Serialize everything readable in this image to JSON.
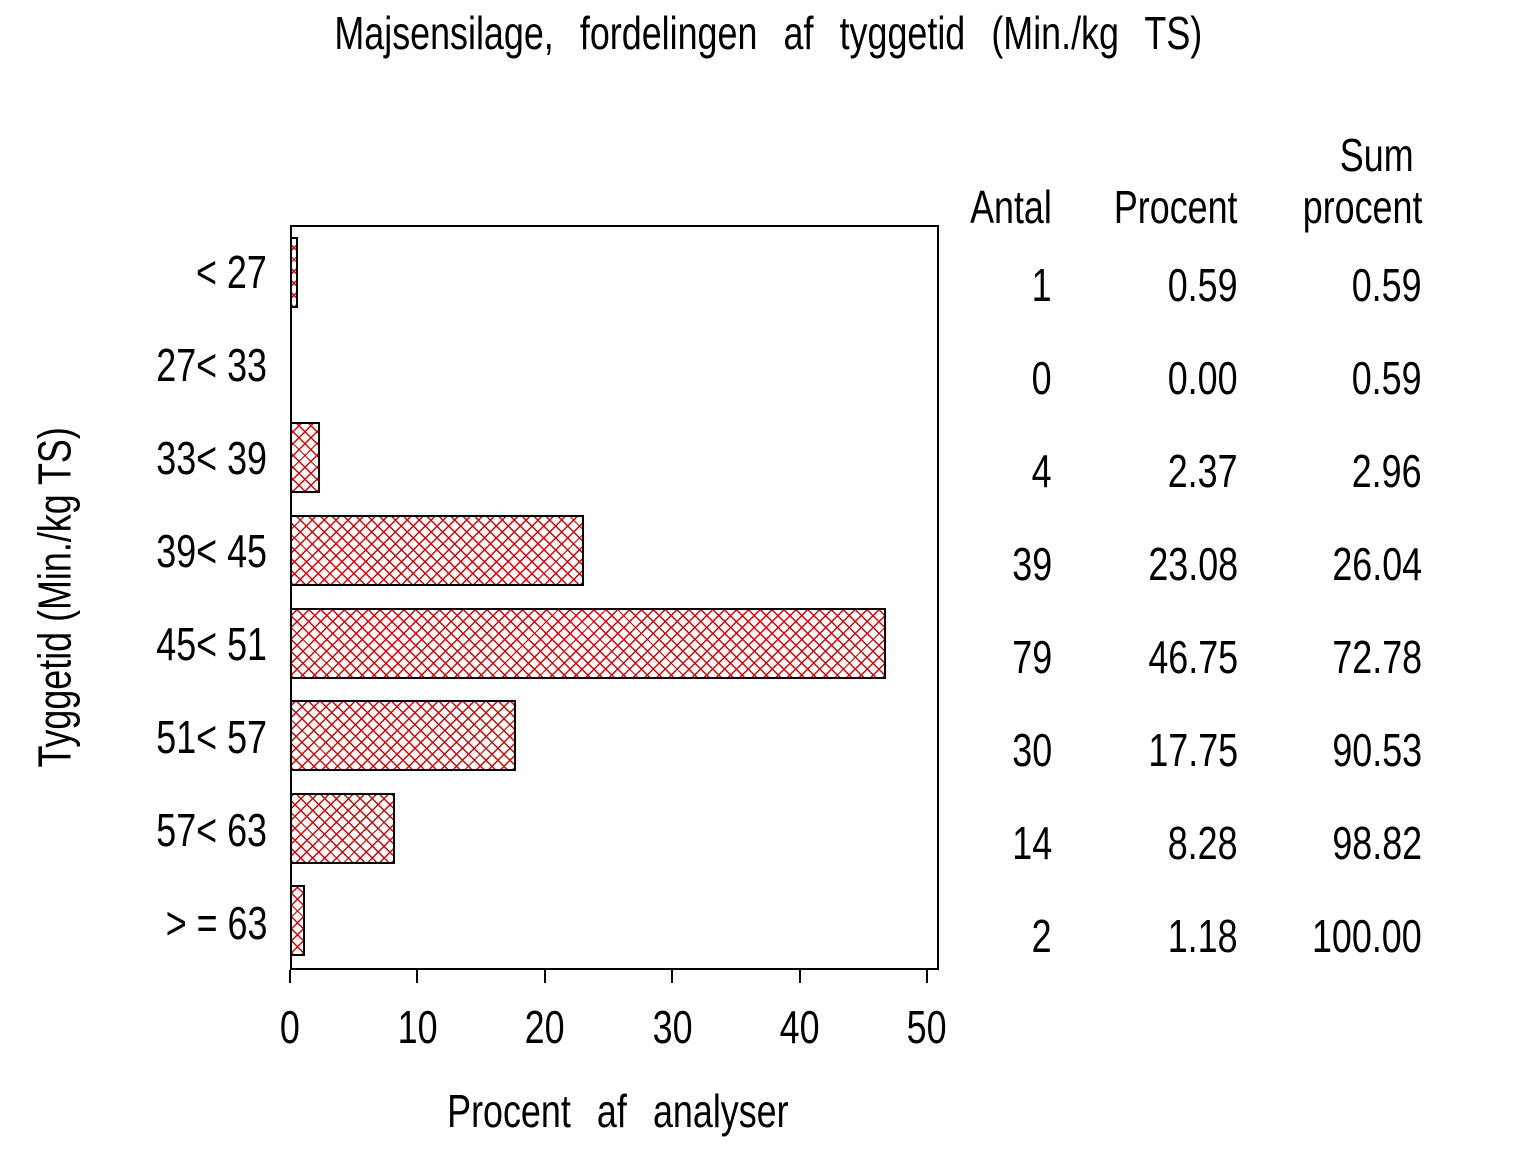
{
  "title": "Majsensilage, fordelingen af tyggetid (Min./kg TS)",
  "chart_data": {
    "type": "bar",
    "orientation": "horizontal",
    "title": "Majsensilage, fordelingen af tyggetid (Min./kg TS)",
    "xlabel": "Procent af analyser",
    "ylabel": "Tyggetid (Min./kg TS)",
    "xlim": [
      0,
      50
    ],
    "xticks": [
      "0",
      "10",
      "20",
      "30",
      "40",
      "50"
    ],
    "grid": "off",
    "legend": "none",
    "categories": [
      "< 27",
      "27< 33",
      "33< 39",
      "39< 45",
      "45< 51",
      "51< 57",
      "57< 63",
      "> = 63"
    ],
    "values": [
      0.59,
      0.0,
      2.37,
      23.08,
      46.75,
      17.75,
      8.28,
      1.18
    ],
    "bar_color": "#e00000",
    "bar_pattern": "crosshatch",
    "bar_border_color": "#000000"
  },
  "table": {
    "headers": {
      "antal": "Antal",
      "procent": "Procent",
      "sum_line1": "Sum",
      "sum_line2": "procent"
    },
    "rows": [
      {
        "antal": "1",
        "procent": "0.59",
        "sum": "0.59"
      },
      {
        "antal": "0",
        "procent": "0.00",
        "sum": "0.59"
      },
      {
        "antal": "4",
        "procent": "2.37",
        "sum": "2.96"
      },
      {
        "antal": "39",
        "procent": "23.08",
        "sum": "26.04"
      },
      {
        "antal": "79",
        "procent": "46.75",
        "sum": "72.78"
      },
      {
        "antal": "30",
        "procent": "17.75",
        "sum": "90.53"
      },
      {
        "antal": "14",
        "procent": "8.28",
        "sum": "98.82"
      },
      {
        "antal": "2",
        "procent": "1.18",
        "sum": "100.00"
      }
    ]
  }
}
